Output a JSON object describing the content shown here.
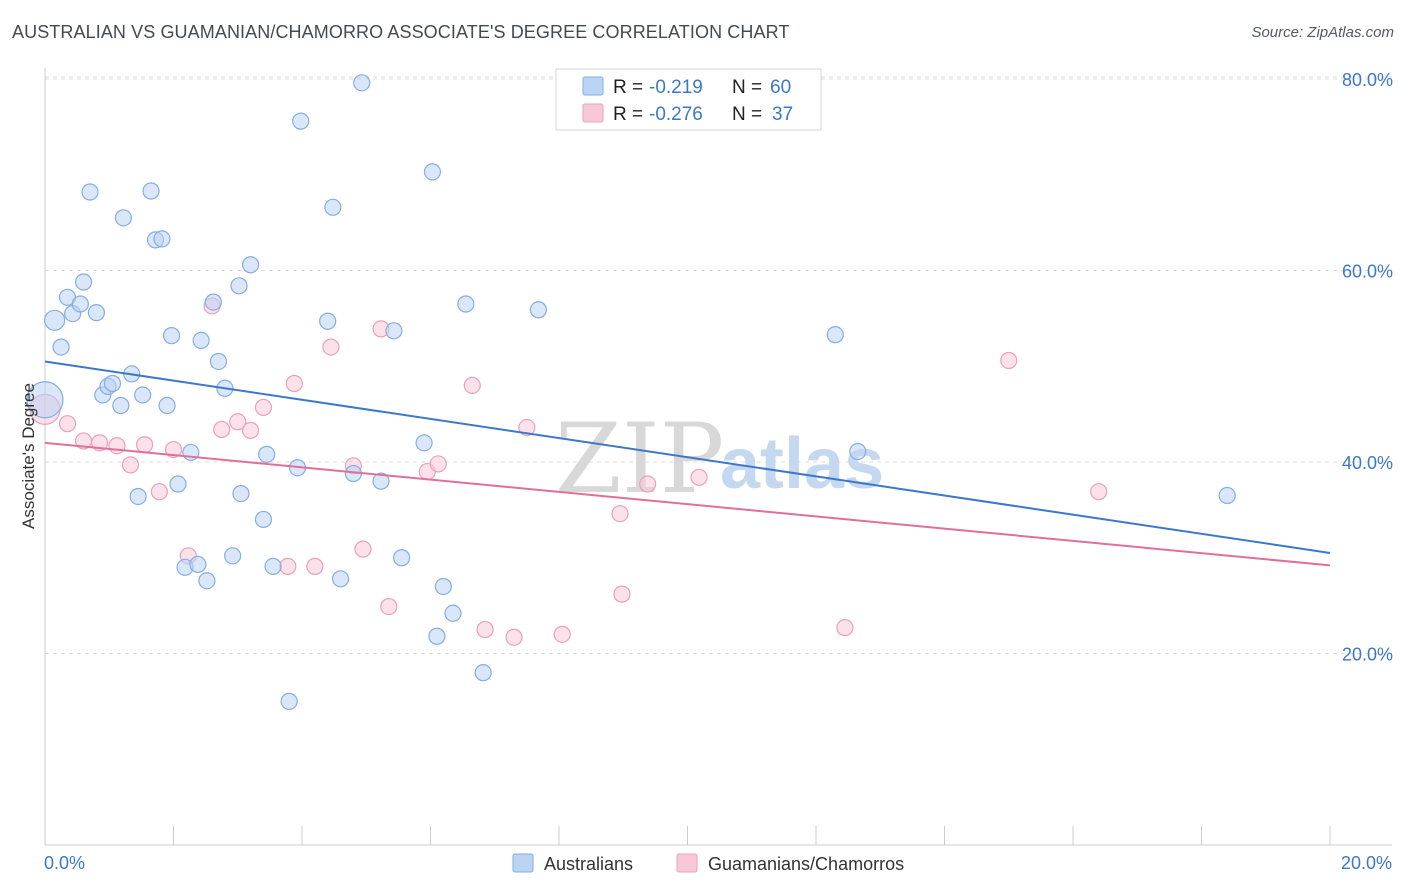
{
  "title": "AUSTRALIAN VS GUAMANIAN/CHAMORRO ASSOCIATE'S DEGREE CORRELATION CHART",
  "source": "Source: ZipAtlas.com",
  "watermark": {
    "zip": "ZIP",
    "atlas": "atlas"
  },
  "colors": {
    "blue": "#3d78c8",
    "blue_fill": "#bcd4f4",
    "blue_stroke": "#86aee0",
    "pink": "#e0709a",
    "pink_fill": "#f8c8d8",
    "pink_stroke": "#eaa0bc",
    "grid": "#dddddd"
  },
  "legend": {
    "blue": {
      "r_label": "R = ",
      "r_value": "-0.219",
      "n_label": "N = ",
      "n_value": "60"
    },
    "pink": {
      "r_label": "R = ",
      "r_value": "-0.276",
      "n_label": "N = ",
      "n_value": "37"
    }
  },
  "chart_data": {
    "type": "scatter",
    "title": "AUSTRALIAN VS GUAMANIAN/CHAMORRO ASSOCIATE'S DEGREE CORRELATION CHART",
    "xlabel": "",
    "ylabel": "Associate's Degree",
    "xlim": [
      0,
      20
    ],
    "ylim": [
      0,
      82
    ],
    "x_tick_labels": {
      "left": "0.0%",
      "right": "20.0%"
    },
    "y_ticks": [
      {
        "value": 20,
        "label": "20.0%"
      },
      {
        "value": 40,
        "label": "40.0%"
      },
      {
        "value": 60,
        "label": "60.0%"
      },
      {
        "value": 80,
        "label": "80.0%"
      }
    ],
    "grid": true,
    "legend_position": "top-center",
    "series": [
      {
        "name": "Australians",
        "color": "#3d78c8",
        "trend": {
          "x": [
            0,
            20
          ],
          "y": [
            50.5,
            30.5
          ]
        },
        "points": [
          [
            0.0,
            46.5,
            18
          ],
          [
            0.15,
            54.8,
            10
          ],
          [
            0.25,
            52.0,
            8
          ],
          [
            0.35,
            57.2,
            8
          ],
          [
            0.43,
            55.5,
            8
          ],
          [
            0.55,
            56.5,
            8
          ],
          [
            0.6,
            58.8,
            8
          ],
          [
            0.7,
            68.2,
            8
          ],
          [
            0.8,
            55.6,
            8
          ],
          [
            0.9,
            47.0,
            8
          ],
          [
            0.98,
            47.9,
            8
          ],
          [
            1.05,
            48.2,
            8
          ],
          [
            1.18,
            45.9,
            8
          ],
          [
            1.22,
            65.5,
            8
          ],
          [
            1.35,
            49.2,
            8
          ],
          [
            1.45,
            36.4,
            8
          ],
          [
            1.52,
            47.0,
            8
          ],
          [
            1.65,
            68.3,
            8
          ],
          [
            1.72,
            63.2,
            8
          ],
          [
            1.82,
            63.3,
            8
          ],
          [
            1.9,
            45.9,
            8
          ],
          [
            1.97,
            53.2,
            8
          ],
          [
            2.07,
            37.7,
            8
          ],
          [
            2.18,
            29.0,
            8
          ],
          [
            2.27,
            41.0,
            8
          ],
          [
            2.38,
            29.3,
            8
          ],
          [
            2.43,
            52.7,
            8
          ],
          [
            2.52,
            27.6,
            8
          ],
          [
            2.62,
            56.7,
            8
          ],
          [
            2.7,
            50.5,
            8
          ],
          [
            2.8,
            47.7,
            8
          ],
          [
            2.92,
            30.2,
            8
          ],
          [
            3.02,
            58.4,
            8
          ],
          [
            3.05,
            36.7,
            8
          ],
          [
            3.2,
            60.6,
            8
          ],
          [
            3.4,
            34.0,
            8
          ],
          [
            3.45,
            40.8,
            8
          ],
          [
            3.55,
            29.1,
            8
          ],
          [
            3.8,
            15.0,
            8
          ],
          [
            3.93,
            39.4,
            8
          ],
          [
            3.98,
            75.6,
            8
          ],
          [
            4.4,
            54.7,
            8
          ],
          [
            4.48,
            66.6,
            8
          ],
          [
            4.6,
            27.8,
            8
          ],
          [
            4.8,
            38.8,
            8
          ],
          [
            4.93,
            79.6,
            8
          ],
          [
            5.23,
            38.0,
            8
          ],
          [
            5.43,
            53.7,
            8
          ],
          [
            5.55,
            30.0,
            8
          ],
          [
            5.9,
            42.0,
            8
          ],
          [
            6.03,
            70.3,
            8
          ],
          [
            6.1,
            21.8,
            8
          ],
          [
            6.2,
            27.0,
            8
          ],
          [
            6.35,
            24.2,
            8
          ],
          [
            6.55,
            56.5,
            8
          ],
          [
            6.82,
            18.0,
            8
          ],
          [
            7.68,
            55.9,
            8
          ],
          [
            12.3,
            53.3,
            8
          ],
          [
            12.65,
            41.1,
            8
          ],
          [
            18.4,
            36.5,
            8
          ]
        ]
      },
      {
        "name": "Guamanians/Chamorros",
        "color": "#e0709a",
        "trend": {
          "x": [
            0,
            20
          ],
          "y": [
            42.0,
            29.2
          ]
        },
        "points": [
          [
            0.0,
            45.5,
            15
          ],
          [
            0.35,
            44.0,
            8
          ],
          [
            0.6,
            42.2,
            8
          ],
          [
            0.85,
            42.0,
            8
          ],
          [
            1.12,
            41.7,
            8
          ],
          [
            1.33,
            39.7,
            8
          ],
          [
            1.55,
            41.8,
            8
          ],
          [
            1.78,
            36.9,
            8
          ],
          [
            2.0,
            41.3,
            8
          ],
          [
            2.23,
            30.2,
            8
          ],
          [
            2.6,
            56.3,
            8
          ],
          [
            2.75,
            43.4,
            8
          ],
          [
            3.0,
            44.2,
            8
          ],
          [
            3.2,
            43.3,
            8
          ],
          [
            3.4,
            45.7,
            8
          ],
          [
            3.78,
            29.1,
            8
          ],
          [
            3.88,
            48.2,
            8
          ],
          [
            4.2,
            29.1,
            8
          ],
          [
            4.45,
            52.0,
            8
          ],
          [
            4.8,
            39.6,
            8
          ],
          [
            4.95,
            30.9,
            8
          ],
          [
            5.23,
            53.9,
            8
          ],
          [
            5.35,
            24.9,
            8
          ],
          [
            5.95,
            39.0,
            8
          ],
          [
            6.12,
            39.8,
            8
          ],
          [
            6.65,
            48.0,
            8
          ],
          [
            6.85,
            22.5,
            8
          ],
          [
            7.3,
            21.7,
            8
          ],
          [
            7.5,
            43.6,
            8
          ],
          [
            8.05,
            22.0,
            8
          ],
          [
            8.95,
            34.6,
            8
          ],
          [
            8.98,
            26.2,
            8
          ],
          [
            9.38,
            37.7,
            8
          ],
          [
            10.18,
            38.4,
            8
          ],
          [
            12.45,
            22.7,
            8
          ],
          [
            15.0,
            50.6,
            8
          ],
          [
            16.4,
            36.9,
            8
          ]
        ]
      }
    ]
  },
  "bottom_legend": [
    {
      "label": "Australians",
      "color": "blue"
    },
    {
      "label": "Guamanians/Chamorros",
      "color": "pink"
    }
  ]
}
